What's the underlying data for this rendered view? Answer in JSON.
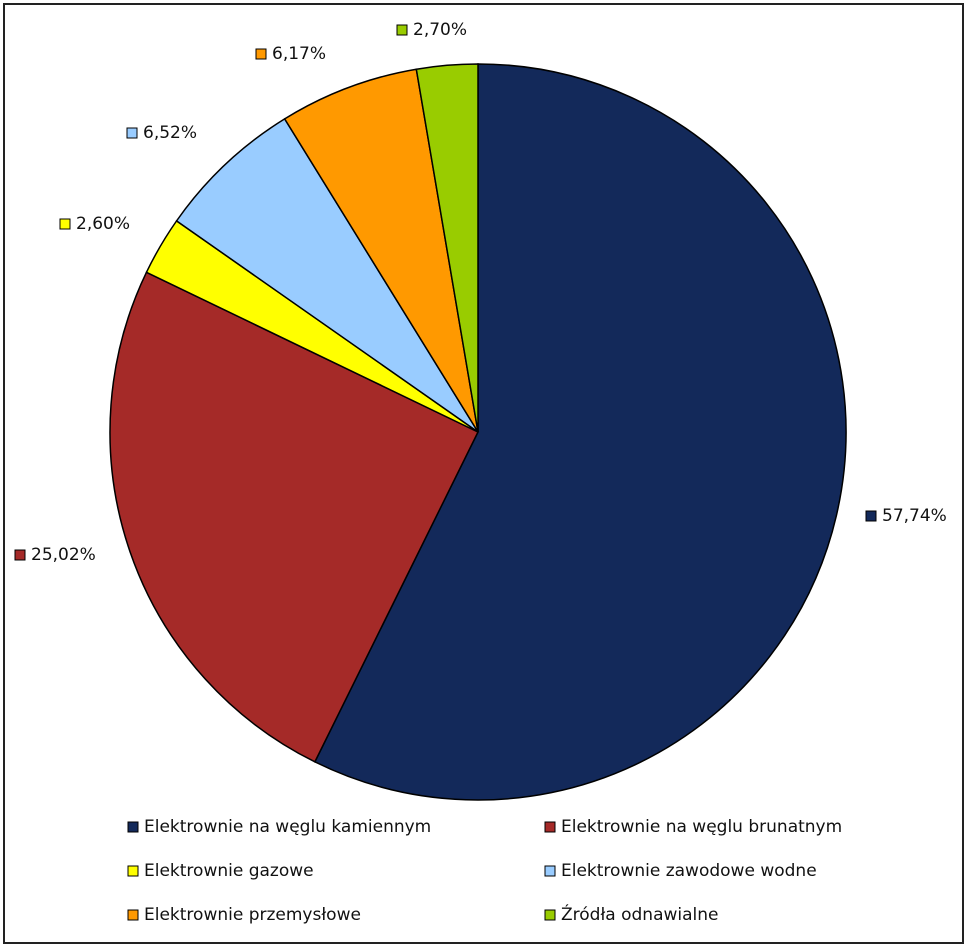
{
  "chart_data": {
    "type": "pie",
    "start_angle_deg": 0,
    "direction": "clockwise",
    "slices": [
      {
        "name": "Elektrownie na węglu kamiennym",
        "value": 57.74,
        "label": "57,74%",
        "color": "#13295A"
      },
      {
        "name": "Elektrownie na węglu brunatnym",
        "value": 25.02,
        "label": "25,02%",
        "color": "#A52A28"
      },
      {
        "name": "Elektrownie gazowe",
        "value": 2.6,
        "label": "2,60%",
        "color": "#FFFF00"
      },
      {
        "name": "Elektrownie zawodowe wodne",
        "value": 6.52,
        "label": "6,52%",
        "color": "#99CCFF"
      },
      {
        "name": "Elektrownie przemysłowe",
        "value": 6.17,
        "label": "6,17%",
        "color": "#FF9900"
      },
      {
        "name": "Źródła odnawialne",
        "value": 2.7,
        "label": "2,70%",
        "color": "#99CC00"
      }
    ],
    "legend_position": "bottom"
  }
}
